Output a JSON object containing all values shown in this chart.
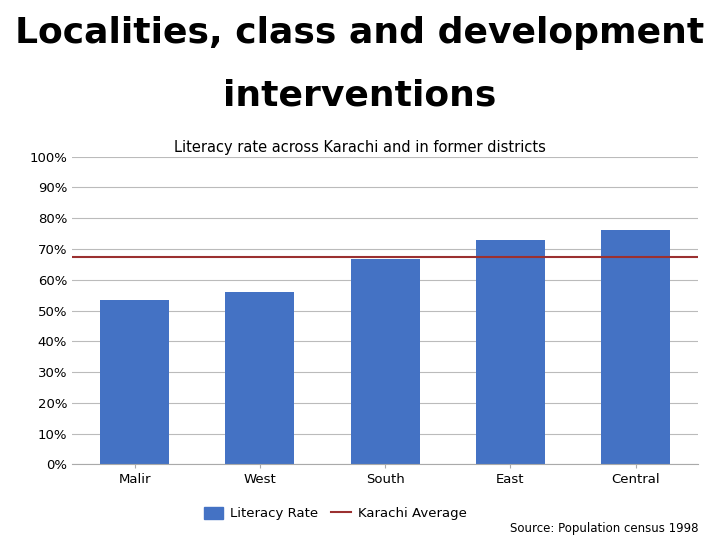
{
  "title_line1": "Localities, class and development",
  "title_line2": "interventions",
  "subtitle": "Literacy rate across Karachi and in former districts",
  "categories": [
    "Malir",
    "West",
    "South",
    "East",
    "Central"
  ],
  "values": [
    0.535,
    0.56,
    0.668,
    0.73,
    0.762
  ],
  "karachi_average": 0.674,
  "bar_color": "#4472C4",
  "line_color": "#9B3030",
  "ytick_labels": [
    "0%",
    "10%",
    "20%",
    "30%",
    "40%",
    "50%",
    "60%",
    "70%",
    "80%",
    "90%",
    "100%"
  ],
  "ytick_values": [
    0,
    0.1,
    0.2,
    0.3,
    0.4,
    0.5,
    0.6,
    0.7,
    0.8,
    0.9,
    1.0
  ],
  "ylim": [
    0,
    1.0
  ],
  "source_text": "Source: Population census 1998",
  "legend_bar_label": "Literacy Rate",
  "legend_line_label": "Karachi Average",
  "background_color": "#ffffff",
  "grid_color": "#bbbbbb",
  "title_fontsize": 26,
  "subtitle_fontsize": 10.5,
  "tick_fontsize": 9.5,
  "source_fontsize": 8.5
}
